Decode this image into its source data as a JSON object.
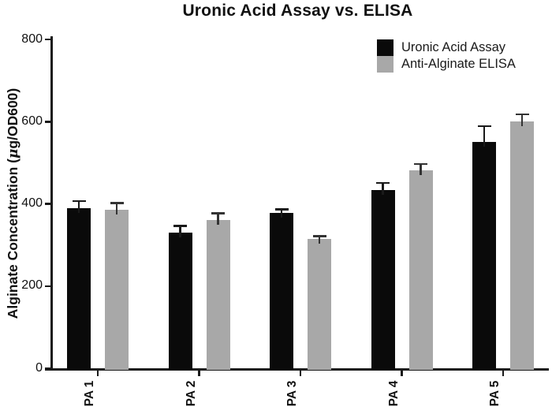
{
  "title": "Uronic Acid Assay vs. ELISA",
  "legend": [
    {
      "label": "Uronic Acid Assay",
      "color": "#0a0a0a"
    },
    {
      "label": "Anti-Alginate ELISA",
      "color": "#a8a8a8"
    }
  ],
  "axes": {
    "y_label_prefix": "Alginate Concentration (",
    "y_label_mu": "μ",
    "y_label_suffix": "g/OD600)",
    "y_tick_labels": [
      "0",
      "200",
      "400",
      "600",
      "800"
    ]
  },
  "chart_data": {
    "type": "bar",
    "title": "Uronic Acid Assay vs. ELISA",
    "categories": [
      "PA 1",
      "PA 2",
      "PA 3",
      "PA 4",
      "PA 5"
    ],
    "series": [
      {
        "name": "Uronic Acid Assay",
        "color": "#0a0a0a",
        "error_color": "#1a1a1a",
        "values": [
          390,
          330,
          378,
          433,
          550
        ],
        "errors": [
          17,
          16,
          9,
          18,
          39
        ]
      },
      {
        "name": "Anti-Alginate ELISA",
        "color": "#a8a8a8",
        "error_color": "#333333",
        "values": [
          385,
          360,
          315,
          482,
          600
        ],
        "errors": [
          17,
          17,
          6,
          15,
          18
        ]
      }
    ],
    "xlabel": "",
    "ylabel": "Alginate Concentration (μg/OD600)",
    "ylim": [
      0,
      800
    ],
    "y_ticks": [
      0,
      200,
      400,
      600,
      800
    ],
    "grid": false,
    "legend_position": "top-right"
  }
}
